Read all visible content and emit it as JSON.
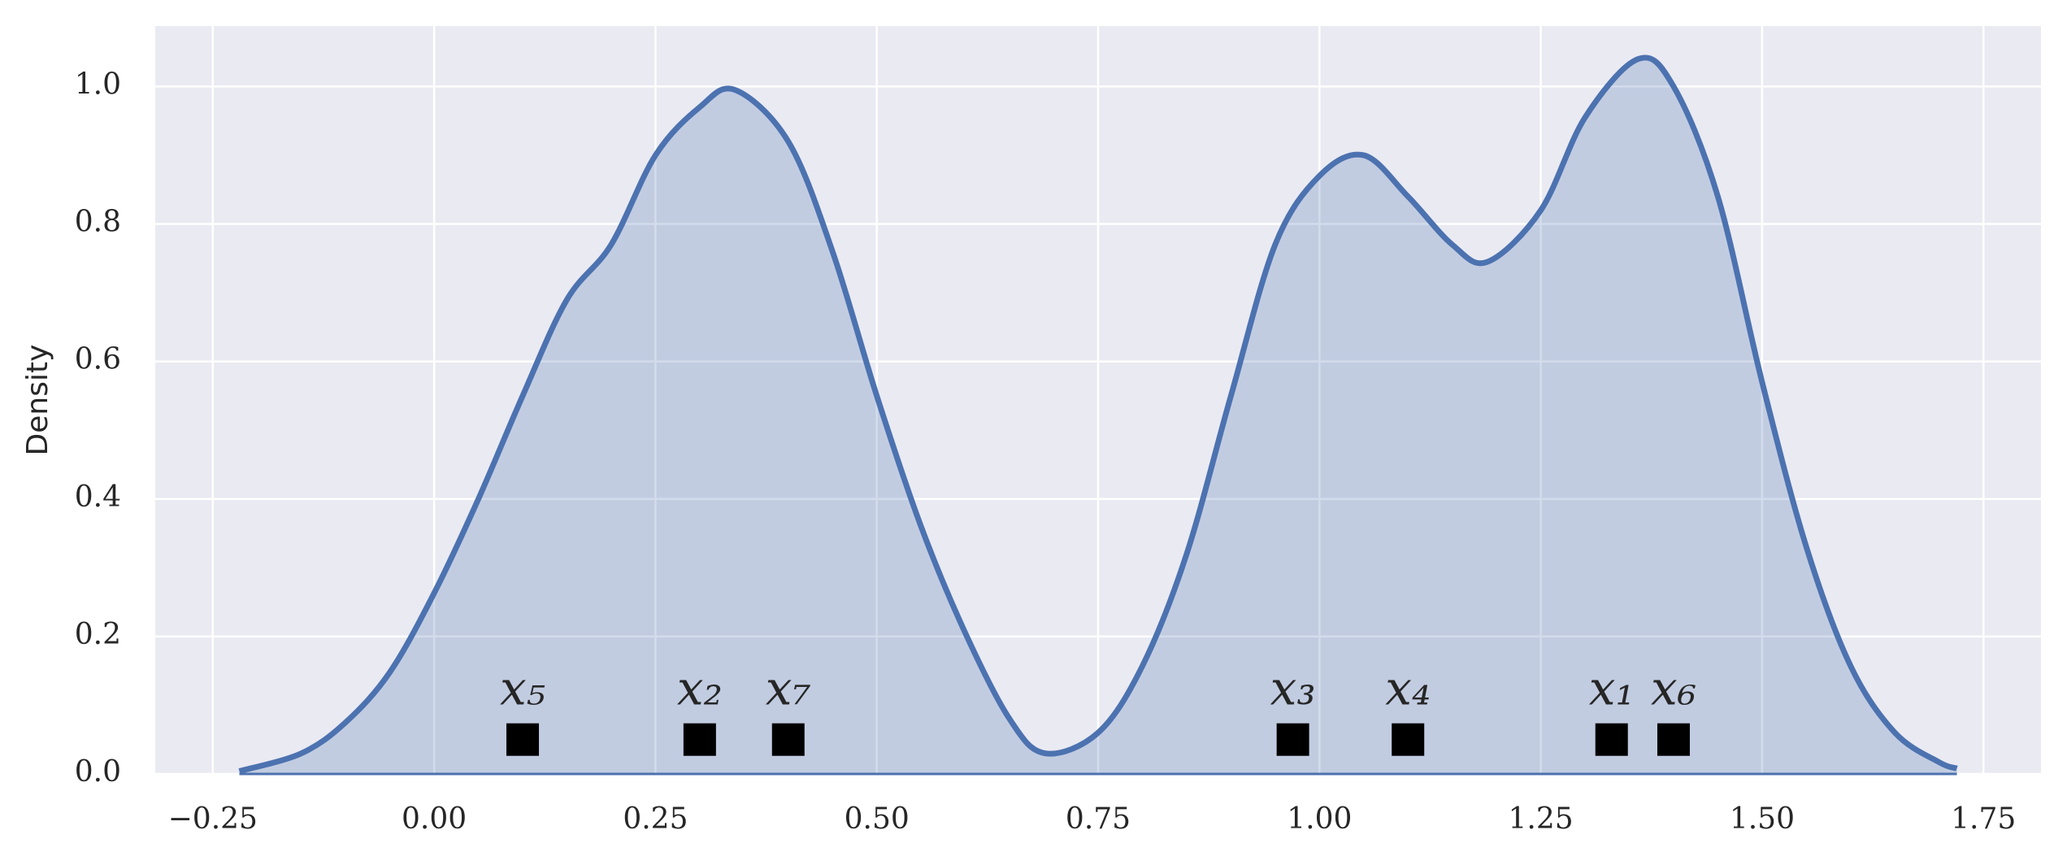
{
  "chart_data": {
    "type": "kde",
    "ylabel": "Density",
    "xlim": [
      -0.315,
      1.815
    ],
    "ylim": [
      0,
      1.088
    ],
    "grid": true,
    "xticks": [
      {
        "value": -0.25,
        "label": "−0.25"
      },
      {
        "value": 0,
        "label": "0.00"
      },
      {
        "value": 0.25,
        "label": "0.25"
      },
      {
        "value": 0.5,
        "label": "0.50"
      },
      {
        "value": 0.75,
        "label": "0.75"
      },
      {
        "value": 1,
        "label": "1.00"
      },
      {
        "value": 1.25,
        "label": "1.25"
      },
      {
        "value": 1.5,
        "label": "1.50"
      },
      {
        "value": 1.75,
        "label": "1.75"
      }
    ],
    "yticks": [
      {
        "value": 0,
        "label": "0.0"
      },
      {
        "value": 0.2,
        "label": "0.2"
      },
      {
        "value": 0.4,
        "label": "0.4"
      },
      {
        "value": 0.6,
        "label": "0.6"
      },
      {
        "value": 0.8,
        "label": "0.8"
      },
      {
        "value": 1,
        "label": "1.0"
      }
    ],
    "curve": {
      "color": "#4c72b0",
      "x": [
        -0.22,
        -0.15,
        -0.1,
        -0.05,
        0,
        0.05,
        0.1,
        0.15,
        0.2,
        0.25,
        0.3,
        0.34,
        0.4,
        0.45,
        0.5,
        0.55,
        0.6,
        0.65,
        0.69,
        0.75,
        0.8,
        0.85,
        0.9,
        0.95,
        1,
        1.05,
        1.1,
        1.15,
        1.19,
        1.25,
        1.3,
        1.36,
        1.4,
        1.45,
        1.5,
        1.55,
        1.6,
        1.65,
        1.7,
        1.72
      ],
      "y": [
        0.004,
        0.03,
        0.075,
        0.148,
        0.263,
        0.4,
        0.55,
        0.69,
        0.77,
        0.9,
        0.97,
        0.995,
        0.92,
        0.76,
        0.55,
        0.36,
        0.205,
        0.08,
        0.03,
        0.06,
        0.157,
        0.32,
        0.55,
        0.77,
        0.87,
        0.9,
        0.84,
        0.77,
        0.745,
        0.82,
        0.955,
        1.04,
        1.0,
        0.84,
        0.57,
        0.33,
        0.157,
        0.06,
        0.017,
        0.008
      ]
    },
    "points": {
      "color": "#000000",
      "x": [
        0.1,
        0.3,
        0.4,
        0.97,
        1.1,
        1.33,
        1.4
      ],
      "y": [
        0.05,
        0.05,
        0.05,
        0.05,
        0.05,
        0.05,
        0.05
      ],
      "labels": [
        "x₅",
        "x₂",
        "x₇",
        "x₃",
        "x₄",
        "x₁",
        "x₆"
      ]
    }
  }
}
